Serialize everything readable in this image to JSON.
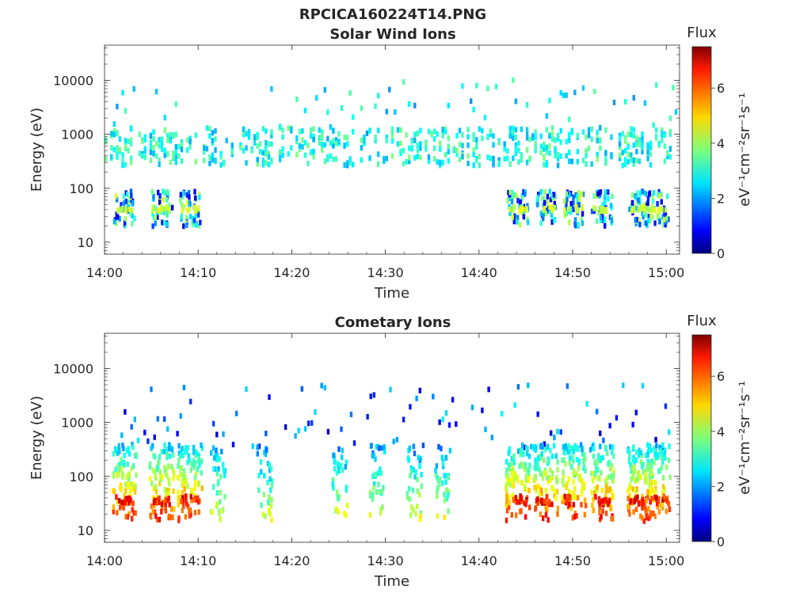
{
  "figure": {
    "title": "RPCICA160224T14.PNG"
  },
  "chart_data": [
    {
      "type": "heatmap",
      "title": "Solar Wind Ions",
      "xlabel": "Time",
      "ylabel": "Energy (eV)",
      "x_ticks": [
        "14:00",
        "14:10",
        "14:20",
        "14:30",
        "14:40",
        "14:50",
        "15:00"
      ],
      "xlim": [
        "14:00",
        "15:01"
      ],
      "y_scale": "log",
      "y_ticks": [
        "10",
        "100",
        "1000",
        "10000"
      ],
      "ylim": [
        6,
        45000
      ],
      "colorbar": {
        "label_top": "Flux",
        "label": "eV⁻¹cm⁻²sr⁻¹s⁻¹",
        "ticks": [
          "0",
          "2",
          "4",
          "6"
        ],
        "range": [
          0,
          7.5
        ],
        "colormap": "jet"
      },
      "features": {
        "main_band_energy_eV": 600,
        "main_band_flux": 3,
        "low_energy_bursts_eV": [
          20,
          90
        ],
        "low_energy_burst_times": [
          "14:02",
          "14:06",
          "14:09",
          "14:44",
          "14:47",
          "14:50",
          "14:53",
          "14:57",
          "14:59"
        ],
        "peak_flux": 4.5
      }
    },
    {
      "type": "heatmap",
      "title": "Cometary Ions",
      "xlabel": "Time",
      "ylabel": "Energy (eV)",
      "x_ticks": [
        "14:00",
        "14:10",
        "14:20",
        "14:30",
        "14:40",
        "14:50",
        "15:00"
      ],
      "xlim": [
        "14:00",
        "15:01"
      ],
      "y_scale": "log",
      "y_ticks": [
        "10",
        "100",
        "1000",
        "10000"
      ],
      "ylim": [
        6,
        45000
      ],
      "colorbar": {
        "label_top": "Flux",
        "label": "eV⁻¹cm⁻²sr⁻¹s⁻¹",
        "ticks": [
          "0",
          "2",
          "4",
          "6"
        ],
        "range": [
          0,
          7.5
        ],
        "colormap": "jet"
      },
      "features": {
        "main_band_energy_eV": [
          15,
          400
        ],
        "high_energy_sparse_eV": [
          300,
          5000
        ],
        "burst_times": [
          "14:02",
          "14:06",
          "14:09",
          "14:12",
          "14:17",
          "14:25",
          "14:29",
          "14:33",
          "14:36",
          "14:44",
          "14:47",
          "14:50",
          "14:53",
          "14:57",
          "14:59"
        ],
        "peak_flux": 7
      }
    }
  ]
}
